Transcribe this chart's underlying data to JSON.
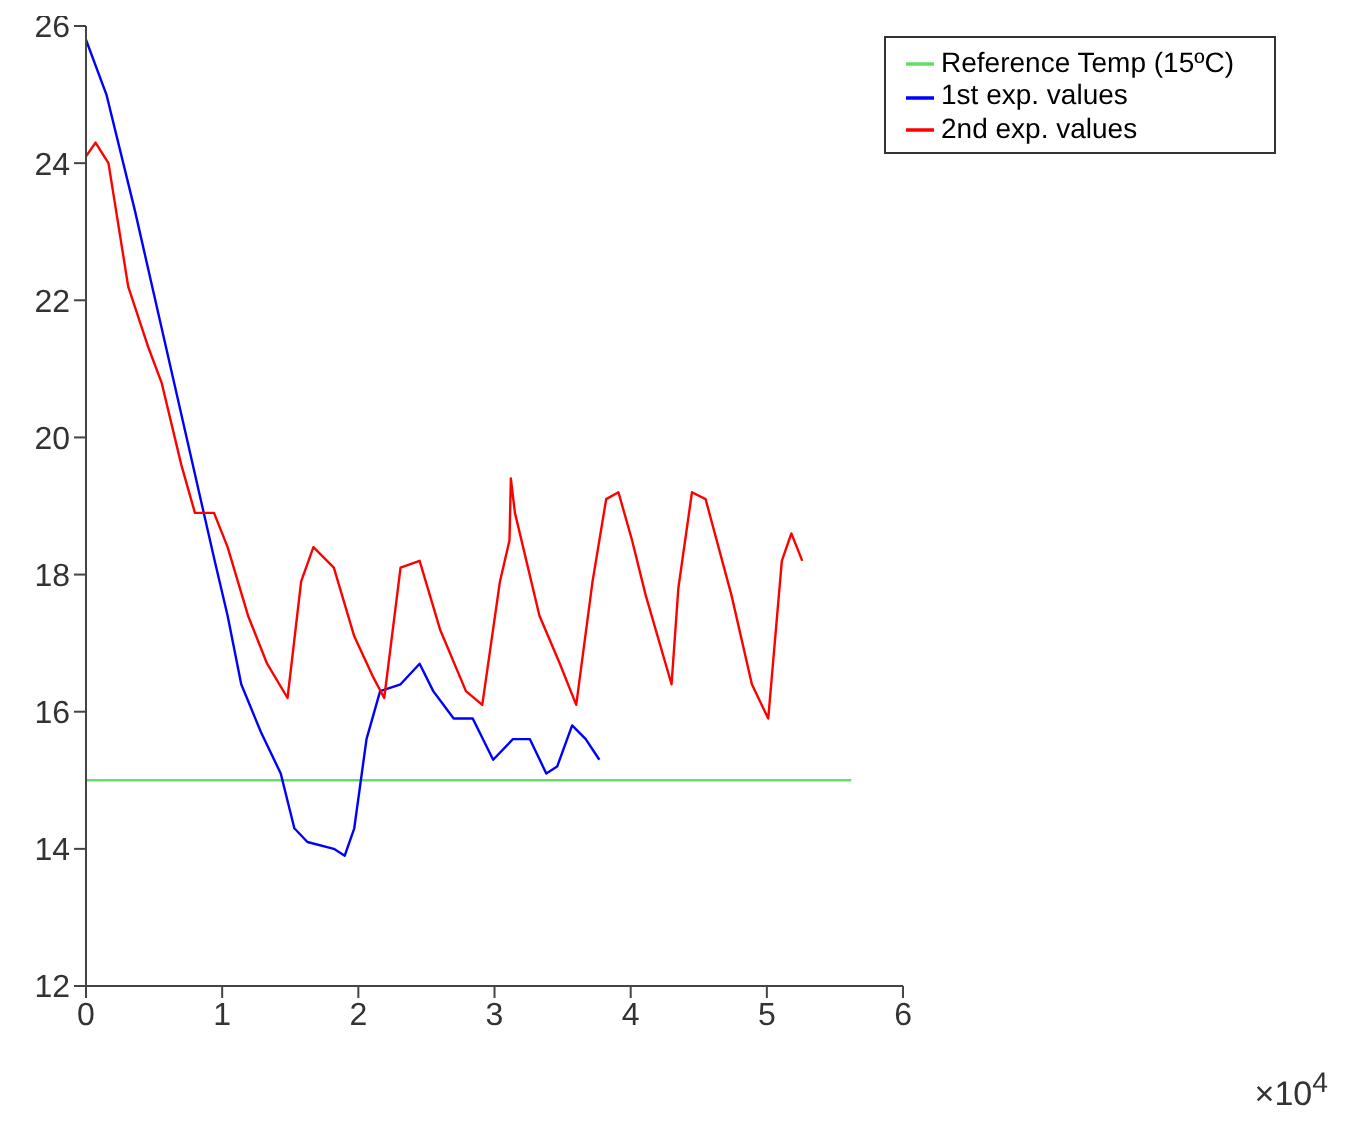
{
  "chart_data": {
    "type": "line",
    "xlim": [
      0,
      6
    ],
    "xticks": [
      0,
      1,
      2,
      3,
      4,
      5,
      6
    ],
    "ylim": [
      12,
      26
    ],
    "yticks": [
      12,
      14,
      16,
      18,
      20,
      22,
      24,
      26
    ],
    "legend": "top right",
    "annotations": [
      "×10$^{4}$"
    ],
    "series": [
      {
        "name": "Reference Temp (15ºC)",
        "color": "#66dd66",
        "x": [
          0,
          5.62
        ],
        "values": [
          15,
          15
        ]
      },
      {
        "name": "1st exp. values",
        "color": "#0000ff",
        "x": [
          0,
          0.15,
          0.36,
          0.555,
          0.75,
          0.945,
          1.04,
          1.14,
          1.285,
          1.43,
          1.53,
          1.626,
          1.82,
          1.9,
          1.97,
          2.06,
          2.16,
          2.31,
          2.45,
          2.55,
          2.7,
          2.84,
          2.99,
          3.135,
          3.26,
          3.38,
          3.46,
          3.57,
          3.67,
          3.77
        ],
        "values": [
          25.8,
          25,
          23.3,
          21.6,
          19.9,
          18.2,
          17.4,
          16.4,
          15.7,
          15.1,
          14.3,
          14.1,
          14,
          13.9,
          14.3,
          15.6,
          16.3,
          16.4,
          16.7,
          16.3,
          15.9,
          15.9,
          15.3,
          15.6,
          15.6,
          15.1,
          15.2,
          15.8,
          15.6,
          15.3
        ]
      },
      {
        "name": "2nd exp. values",
        "color": "#ff0000",
        "x": [
          0,
          0.07,
          0.165,
          0.31,
          0.46,
          0.555,
          0.7,
          0.8,
          0.94,
          1.04,
          1.19,
          1.33,
          1.48,
          1.58,
          1.67,
          1.82,
          1.97,
          2.11,
          2.19,
          2.31,
          2.45,
          2.6,
          2.79,
          2.91,
          3.04,
          3.11,
          3.12,
          3.15,
          3.33,
          3.48,
          3.6,
          3.72,
          3.82,
          3.91,
          4.01,
          4.11,
          4.3,
          4.35,
          4.45,
          4.55,
          4.74,
          4.89,
          5.01,
          5.11,
          5.18,
          5.26
        ],
        "values": [
          24.1,
          24.3,
          24,
          22.2,
          21.3,
          20.8,
          19.6,
          18.9,
          18.9,
          18.4,
          17.4,
          16.7,
          16.2,
          17.9,
          18.4,
          18.1,
          17.1,
          16.5,
          16.2,
          18.1,
          18.2,
          17.2,
          16.3,
          16.1,
          17.9,
          18.5,
          19.4,
          18.9,
          17.4,
          16.7,
          16.1,
          17.9,
          19.1,
          19.2,
          18.5,
          17.7,
          16.4,
          17.8,
          19.2,
          19.1,
          17.7,
          16.4,
          15.9,
          18.2,
          18.6,
          18.2
        ]
      }
    ]
  }
}
